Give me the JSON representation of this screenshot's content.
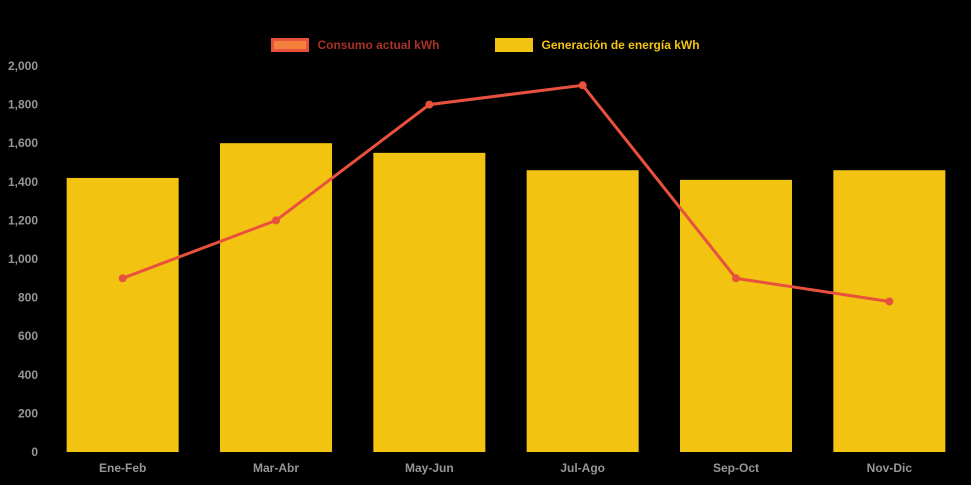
{
  "chart_data": {
    "type": "bar",
    "subtype": "bar-and-line-combo",
    "categories": [
      "Ene-Feb",
      "Mar-Abr",
      "May-Jun",
      "Jul-Ago",
      "Sep-Oct",
      "Nov-Dic"
    ],
    "series": [
      {
        "name": "Generación de energía kWh",
        "type": "bar",
        "color": "#F2C411",
        "values": [
          1420,
          1600,
          1550,
          1460,
          1410,
          1460
        ]
      },
      {
        "name": "Consumo actual kWh",
        "type": "line",
        "color": "#E8513D",
        "values": [
          900,
          1200,
          1800,
          1900,
          900,
          780
        ]
      }
    ],
    "title": "",
    "xlabel": "",
    "ylabel": "",
    "ylim": [
      0,
      2000
    ],
    "ytick_step": 200,
    "ytick_labels": [
      "0",
      "200",
      "400",
      "600",
      "800",
      "1,000",
      "1,200",
      "1,400",
      "1,600",
      "1,800",
      "2,000"
    ],
    "grid": false,
    "legend_position": "top",
    "background_color": "#000000",
    "tick_color": "#969696"
  },
  "legend": {
    "items": [
      {
        "label": "Consumo actual kWh",
        "fill": "#F4813B",
        "border": "#E8513D",
        "text_color": "#A93226"
      },
      {
        "label": "Generación de energía kWh",
        "fill": "#F2C411",
        "border": "#F2C411",
        "text_color": "#F2C411"
      }
    ]
  }
}
